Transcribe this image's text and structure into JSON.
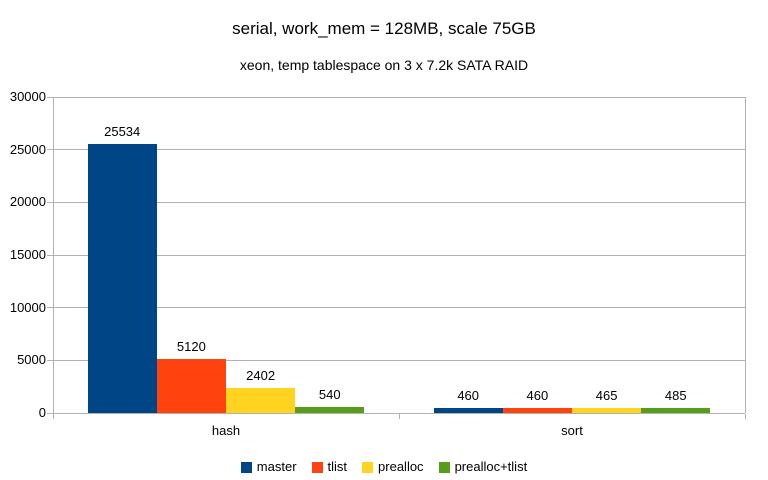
{
  "chart_data": {
    "type": "bar",
    "title": "serial, work_mem = 128MB, scale 75GB",
    "subtitle": "xeon, temp tablespace on 3 x 7.2k SATA RAID",
    "categories": [
      "hash",
      "sort"
    ],
    "series": [
      {
        "name": "master",
        "color": "#004586",
        "values": [
          25534,
          460
        ]
      },
      {
        "name": "tlist",
        "color": "#FF420E",
        "values": [
          5120,
          460
        ]
      },
      {
        "name": "prealloc",
        "color": "#FFD320",
        "values": [
          2402,
          465
        ]
      },
      {
        "name": "prealloc+tlist",
        "color": "#579D1C",
        "values": [
          540,
          485
        ]
      }
    ],
    "ylim": [
      0,
      30000
    ],
    "ytick_step": 5000,
    "grid": "horizontal",
    "legend_position": "bottom",
    "value_labels": true
  },
  "colors": {
    "grid": "#b2b2b2",
    "axis": "#b2b2b2",
    "text": "#000000",
    "background": "#ffffff"
  }
}
